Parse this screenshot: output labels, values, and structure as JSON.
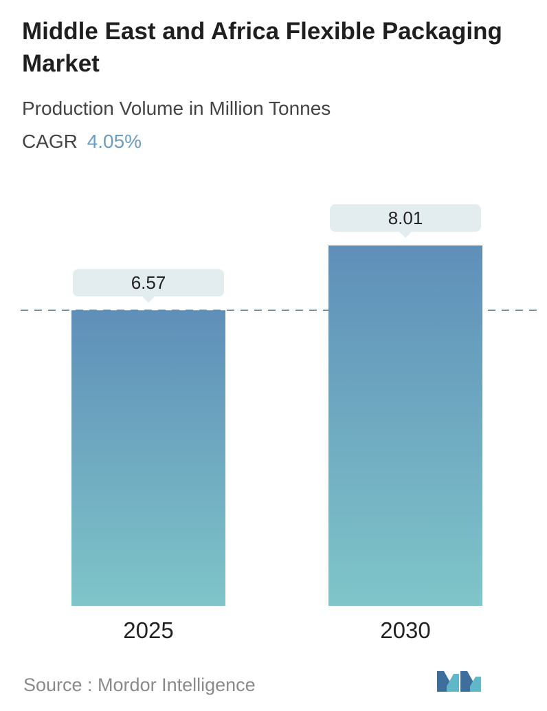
{
  "header": {
    "title": "Middle East and Africa Flexible Packaging Market",
    "subtitle": "Production Volume in Million Tonnes",
    "cagr_label": "CAGR",
    "cagr_value": "4.05%"
  },
  "colors": {
    "bar_top": "#5f8fb9",
    "bar_bottom": "#7fc5c9",
    "label_bg": "#e3ecef",
    "reference_line": "#5e8aa8",
    "cagr": "#6a9dc0"
  },
  "chart_data": {
    "type": "bar",
    "categories": [
      "2025",
      "2030"
    ],
    "values": [
      6.57,
      8.01
    ],
    "data_labels": [
      "6.57",
      "8.01"
    ],
    "title": "Middle East and Africa Flexible Packaging Market",
    "subtitle": "Production Volume in Million Tonnes",
    "xlabel": "",
    "ylabel": "",
    "reference_line": 6.57,
    "grid": false,
    "legend": "none"
  },
  "footer": {
    "source": "Source :  Mordor Intelligence",
    "logo_name": "mordor-intelligence-logo"
  }
}
